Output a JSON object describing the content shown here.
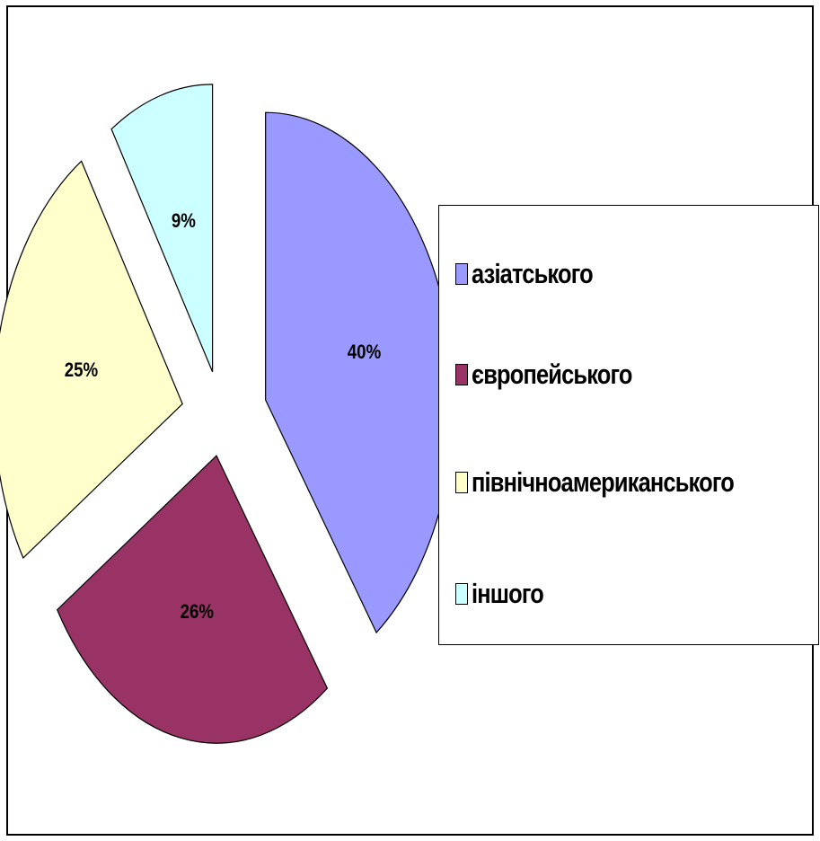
{
  "chart_data": {
    "type": "pie",
    "exploded": true,
    "categories": [
      "азіатського",
      "європейського",
      "північноамериканського",
      "іншого"
    ],
    "values": [
      40,
      26,
      25,
      9
    ],
    "labels": [
      "40%",
      "26%",
      "25%",
      "9%"
    ],
    "colors": [
      "#9999ff",
      "#993366",
      "#ffffcc",
      "#ccffff"
    ],
    "legend_position": "right",
    "title": ""
  }
}
